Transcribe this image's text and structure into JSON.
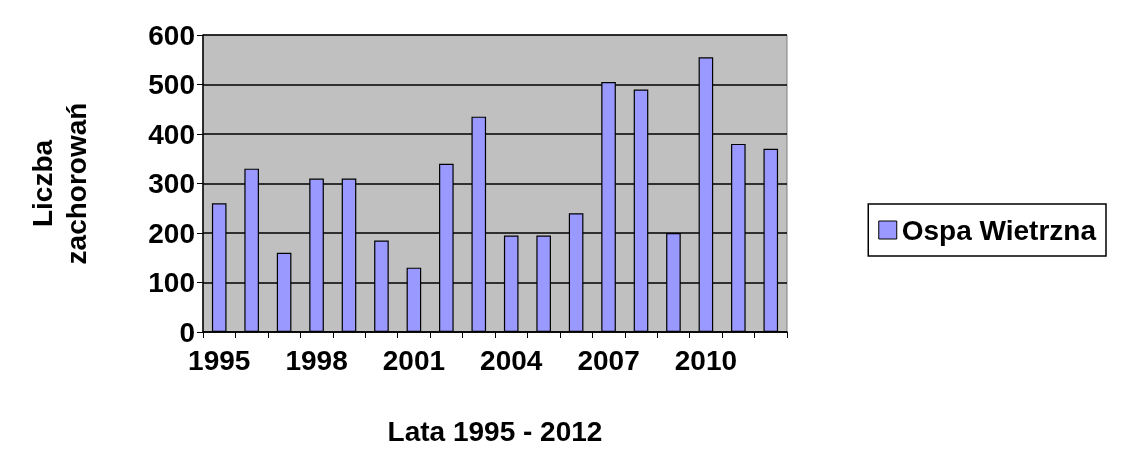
{
  "chart_data": {
    "type": "bar",
    "xlabel": "Lata 1995 - 2012",
    "ylabel": "Liczba\nzachorowań",
    "categories": [
      "1995",
      null,
      null,
      "1998",
      null,
      null,
      "2001",
      null,
      null,
      "2004",
      null,
      null,
      "2007",
      null,
      null,
      "2010",
      null,
      null
    ],
    "series": [
      {
        "name": "Ospa Wietrzna",
        "color": "#9999ff",
        "values": [
          260,
          330,
          160,
          310,
          310,
          185,
          130,
          340,
          435,
          195,
          195,
          240,
          505,
          490,
          200,
          555,
          380,
          370
        ]
      }
    ],
    "ylim": [
      0,
      600
    ],
    "yticks": [
      0,
      100,
      200,
      300,
      400,
      500,
      600
    ],
    "grid": "y",
    "legend": "right"
  }
}
